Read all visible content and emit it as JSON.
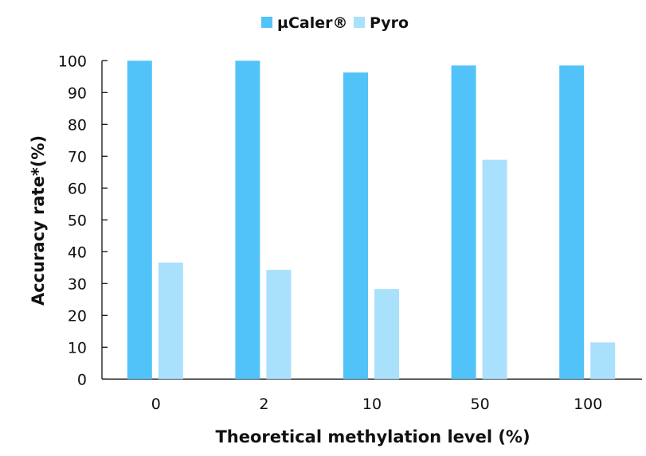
{
  "chart_data": {
    "type": "bar",
    "title": "",
    "xlabel": "Theoretical methylation level (%)",
    "ylabel": "Accuracy rate*(%)",
    "categories": [
      "0",
      "2",
      "10",
      "50",
      "100"
    ],
    "series": [
      {
        "name": "µCaler®",
        "color": "#52c3f8",
        "values": [
          100,
          100,
          96.3,
          98.5,
          98.5
        ]
      },
      {
        "name": "Pyro",
        "color": "#a9e0fb",
        "values": [
          36.6,
          34.3,
          28.3,
          68.9,
          11.5
        ]
      }
    ],
    "ylim": [
      0,
      100
    ],
    "yticks": [
      0,
      10,
      20,
      30,
      40,
      50,
      60,
      70,
      80,
      90,
      100
    ],
    "grid": false,
    "legend": "top-center"
  }
}
